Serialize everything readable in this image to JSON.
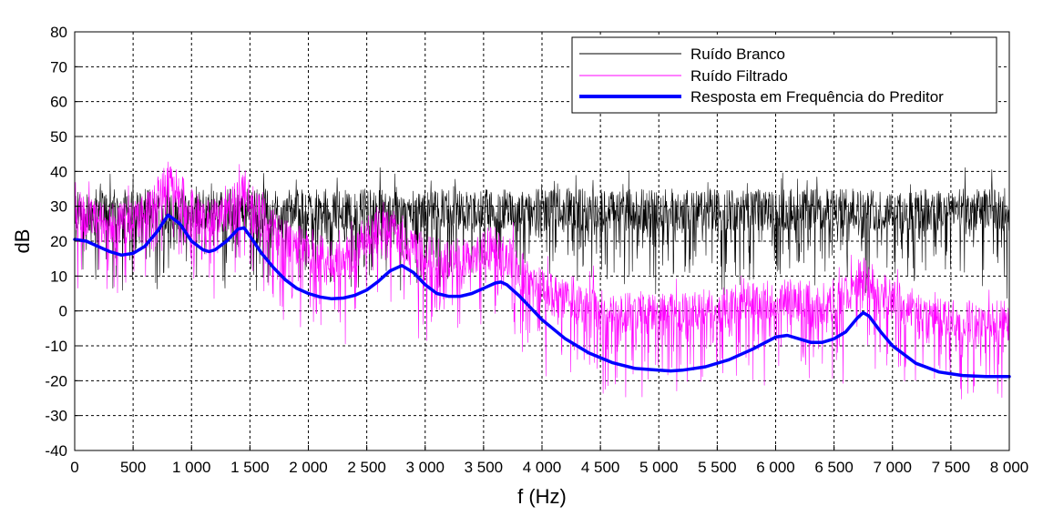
{
  "chart_data": {
    "type": "line",
    "title": "",
    "xlabel": "f (Hz)",
    "ylabel": "dB",
    "xlim": [
      0,
      8000
    ],
    "ylim": [
      -40,
      80
    ],
    "grid": true,
    "legend_position": "top-right",
    "x_ticks": [
      0,
      500,
      1000,
      1500,
      2000,
      2500,
      3000,
      3500,
      4000,
      4500,
      5000,
      5500,
      6000,
      6500,
      7000,
      7500,
      8000
    ],
    "x_tick_labels": [
      "0",
      "500",
      "1 000",
      "1 500",
      "2 000",
      "2 500",
      "3 000",
      "3 500",
      "4 000",
      "4 500",
      "5 000",
      "5 500",
      "6 000",
      "6 500",
      "7 000",
      "7 500",
      "8 000"
    ],
    "y_ticks": [
      -40,
      -30,
      -20,
      -10,
      0,
      10,
      20,
      30,
      40,
      50,
      60,
      70,
      80
    ],
    "y_tick_labels": [
      "-40",
      "-30",
      "-20",
      "-10",
      "0",
      "10",
      "20",
      "30",
      "40",
      "50",
      "60",
      "70",
      "80"
    ],
    "series": [
      {
        "name": "Ruído Branco",
        "color": "#000000",
        "style": "noise",
        "x": [
          0,
          8000
        ],
        "y": [
          29,
          29
        ]
      },
      {
        "name": "Ruído Filtrado",
        "color": "#ff00ff",
        "style": "noise",
        "x": [
          0,
          100,
          200,
          300,
          400,
          500,
          600,
          700,
          800,
          900,
          1000,
          1100,
          1200,
          1300,
          1400,
          1450,
          1500,
          1600,
          1700,
          1800,
          1900,
          2000,
          2100,
          2200,
          2300,
          2400,
          2500,
          2600,
          2700,
          2800,
          2900,
          3000,
          3100,
          3200,
          3300,
          3400,
          3500,
          3600,
          3700,
          3800,
          3900,
          4000,
          4200,
          4400,
          4600,
          4800,
          5000,
          5200,
          5400,
          5600,
          5800,
          6000,
          6200,
          6400,
          6600,
          6700,
          6750,
          6800,
          6900,
          7000,
          7200,
          7400,
          7600,
          7800,
          8000
        ],
        "y": [
          29,
          27,
          26,
          25,
          25,
          26,
          28,
          32,
          37,
          34,
          29,
          27,
          27,
          29,
          33,
          35,
          32,
          27,
          24,
          21,
          19,
          17,
          16,
          15,
          15,
          17,
          20,
          23,
          24,
          21,
          18,
          16,
          15,
          15,
          15,
          16,
          18,
          19,
          16,
          12,
          9,
          6,
          3,
          1,
          0,
          -1,
          -1,
          -1,
          0,
          1,
          3,
          4,
          3,
          2,
          5,
          9,
          10,
          9,
          6,
          3,
          0,
          -2,
          -3,
          -3,
          -3
        ]
      },
      {
        "name": "Resposta em Frequência do Preditor",
        "color": "#0000ff",
        "style": "smooth",
        "x": [
          0,
          100,
          200,
          300,
          400,
          500,
          600,
          700,
          800,
          900,
          1000,
          1100,
          1150,
          1200,
          1300,
          1400,
          1450,
          1500,
          1600,
          1700,
          1800,
          1900,
          2000,
          2100,
          2200,
          2300,
          2400,
          2500,
          2600,
          2700,
          2800,
          2900,
          3000,
          3100,
          3200,
          3300,
          3400,
          3500,
          3600,
          3650,
          3700,
          3800,
          3900,
          4000,
          4200,
          4400,
          4600,
          4800,
          5000,
          5100,
          5200,
          5400,
          5600,
          5800,
          6000,
          6100,
          6200,
          6300,
          6400,
          6500,
          6600,
          6700,
          6750,
          6800,
          6900,
          7000,
          7200,
          7400,
          7600,
          7800,
          8000
        ],
        "y": [
          20.5,
          20,
          18.5,
          17,
          16,
          16.5,
          18.5,
          22.5,
          27.5,
          25,
          20,
          17.5,
          17,
          17.5,
          20,
          23.5,
          23.8,
          21.5,
          16.5,
          12.5,
          9,
          6.5,
          5,
          4,
          3.5,
          3.7,
          4.5,
          6,
          8.5,
          11.5,
          13,
          11,
          7.5,
          5,
          4.2,
          4.2,
          5,
          6.5,
          8,
          8.3,
          7.5,
          4.5,
          1,
          -2.5,
          -8,
          -12,
          -14.8,
          -16.5,
          -17,
          -17.2,
          -17,
          -16,
          -14,
          -11,
          -7.5,
          -7,
          -8,
          -9,
          -9,
          -8,
          -6,
          -2,
          -0.5,
          -1.5,
          -6,
          -10,
          -15,
          -17.5,
          -18.5,
          -18.8,
          -18.8
        ]
      }
    ]
  }
}
